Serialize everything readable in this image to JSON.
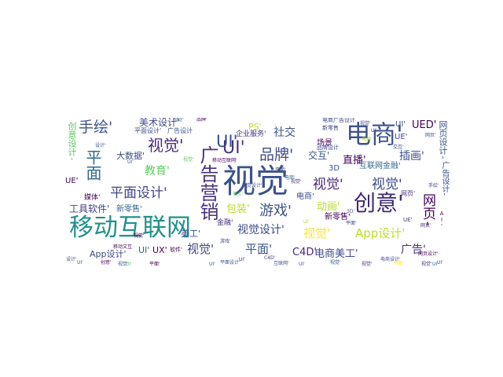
{
  "word_cloud": {
    "colormap": "viridis",
    "words": [
      {
        "text": "视觉",
        "color": "#3b528b"
      },
      {
        "text": "移动互联网",
        "color": "#21918c"
      },
      {
        "text": "电商'",
        "color": "#3b528b"
      },
      {
        "text": "创意'",
        "color": "#3e2a74"
      },
      {
        "text": "广告营销",
        "color": "#46327e"
      },
      {
        "text": "UI'",
        "color": "#3b528b"
      },
      {
        "text": "视觉'",
        "color": "#472d7b"
      },
      {
        "text": "平面",
        "color": "#31688e"
      },
      {
        "text": "品牌'",
        "color": "#3e4a89"
      },
      {
        "text": "平面设计'",
        "color": "#414487"
      },
      {
        "text": "UI'",
        "color": "#46327e"
      },
      {
        "text": "手绘'",
        "color": "#3b528b"
      },
      {
        "text": "游戏'",
        "color": "#3b528b"
      },
      {
        "text": "视觉'",
        "color": "#482878"
      },
      {
        "text": "视觉'",
        "color": "#3e4a89"
      },
      {
        "text": "网页'",
        "color": "#440154"
      },
      {
        "text": "视觉设计'",
        "color": "#3e4a89"
      },
      {
        "text": "视觉'",
        "color": "#fde725"
      },
      {
        "text": "App设计'",
        "color": "#bddf26"
      },
      {
        "text": "视觉'",
        "color": "#414487"
      },
      {
        "text": "平面'",
        "color": "#3b528b"
      },
      {
        "text": "广告'",
        "color": "#46327e"
      },
      {
        "text": "C4D'",
        "color": "#482878"
      },
      {
        "text": "电商美工'",
        "color": "#3e4a89"
      },
      {
        "text": "社交",
        "color": "#3b528b"
      },
      {
        "text": "UED'",
        "color": "#440154"
      },
      {
        "text": "插画'",
        "color": "#3b528b"
      },
      {
        "text": "教育'",
        "color": "#5ec962"
      },
      {
        "text": "包装'",
        "color": "#bddf26"
      },
      {
        "text": "动画'",
        "color": "#b5de2b"
      },
      {
        "text": "直播'",
        "color": "#440154"
      },
      {
        "text": "交互'",
        "color": "#3b528b"
      },
      {
        "text": "美术设计'",
        "color": "#3e4a89"
      },
      {
        "text": "工具软件'",
        "color": "#433e85"
      },
      {
        "text": "大数据'",
        "color": "#3e4a89"
      },
      {
        "text": "新零售'",
        "color": "#31688e"
      },
      {
        "text": "新零售'",
        "color": "#440154"
      },
      {
        "text": "App设计'",
        "color": "#3e4a89"
      },
      {
        "text": "互联网金融'",
        "color": "#31688e"
      },
      {
        "text": "网页设计'",
        "color": "#3b528b"
      },
      {
        "text": "广告设计'",
        "color": "#3b528b"
      },
      {
        "text": "创意设计'",
        "color": "#5ec962"
      },
      {
        "text": "UE'",
        "color": "#440154"
      },
      {
        "text": "UE'",
        "color": "#3e4a89"
      },
      {
        "text": "UI'",
        "color": "#3b528b"
      },
      {
        "text": "电商'",
        "color": "#3e4a89"
      },
      {
        "text": "美工'",
        "color": "#3b528b"
      },
      {
        "text": "PS'",
        "color": "#bddf26"
      },
      {
        "text": "UI'",
        "color": "#31688e"
      },
      {
        "text": "UX'",
        "color": "#440154"
      },
      {
        "text": "3D",
        "color": "#3b528b"
      },
      {
        "text": "场景",
        "color": "#440154"
      },
      {
        "text": "平面设计'",
        "color": "#3e4a89"
      },
      {
        "text": "广告设计",
        "color": "#3b528b"
      },
      {
        "text": "企业服务'",
        "color": "#46327e"
      },
      {
        "text": "品牌设计",
        "color": "#3e4a89"
      },
      {
        "text": "媒体'",
        "color": "#440154"
      },
      {
        "text": "金融'",
        "color": "#482878"
      },
      {
        "text": "网页'",
        "color": "#46327e"
      },
      {
        "text": "电商广告设计",
        "color": "#3e4a89"
      },
      {
        "text": "设计'",
        "color": "#3b528b"
      },
      {
        "text": "UE'",
        "color": "#46327e"
      },
      {
        "text": "移动文互",
        "color": "#440154"
      },
      {
        "text": "新零售",
        "color": "#3e4a89"
      },
      {
        "text": "视觉'",
        "color": "#46327e"
      },
      {
        "text": "视觉'",
        "color": "#5ec962"
      },
      {
        "text": "软件'",
        "color": "#440154"
      },
      {
        "text": "网页'",
        "color": "#3b528b"
      },
      {
        "text": "AI'",
        "color": "#440154"
      },
      {
        "text": "视觉'",
        "color": "#3e4a89"
      },
      {
        "text": "3D'",
        "color": "#3b528b"
      },
      {
        "text": "网页'",
        "color": "#482878"
      },
      {
        "text": "游戏'",
        "color": "#3e4a89"
      },
      {
        "text": "UI'",
        "color": "#3b528b"
      },
      {
        "text": "平面'",
        "color": "#3e4a89"
      },
      {
        "text": "设计'",
        "color": "#3b528b"
      },
      {
        "text": "移动互联网'",
        "color": "#440154"
      },
      {
        "text": "UI'",
        "color": "#46327e"
      },
      {
        "text": "交互'",
        "color": "#3e4a89"
      },
      {
        "text": "电商'",
        "color": "#31688e"
      },
      {
        "text": "品牌'",
        "color": "#440154"
      },
      {
        "text": "视觉'",
        "color": "#3b528b"
      },
      {
        "text": "手绘'",
        "color": "#3e4a89"
      },
      {
        "text": "UI'",
        "color": "#482878"
      },
      {
        "text": "平面设计'",
        "color": "#3b528b"
      },
      {
        "text": "创意'",
        "color": "#440154"
      },
      {
        "text": "UI'",
        "color": "#3e4a89"
      },
      {
        "text": "视觉'",
        "color": "#46327e"
      },
      {
        "text": "互联网'",
        "color": "#3b528b"
      },
      {
        "text": "网页设计'",
        "color": "#440154"
      },
      {
        "text": "电商设计'",
        "color": "#3e4a89"
      },
      {
        "text": "视觉'",
        "color": "#3b528b"
      },
      {
        "text": "C4D'",
        "color": "#46327e"
      },
      {
        "text": "美工'",
        "color": "#5ec962"
      },
      {
        "text": "视觉设计'",
        "color": "#3b528b"
      },
      {
        "text": "UI'",
        "color": "#b5de2b"
      },
      {
        "text": "平面'",
        "color": "#3e4a89"
      },
      {
        "text": "UI'",
        "color": "#3b528b"
      },
      {
        "text": "视觉'",
        "color": "#440154"
      },
      {
        "text": "平面'",
        "color": "#fde725"
      },
      {
        "text": "UI'",
        "color": "#3e4a89"
      },
      {
        "text": "电商'",
        "color": "#b5de2b"
      },
      {
        "text": "UI'",
        "color": "#3b528b"
      },
      {
        "text": "视觉'",
        "color": "#46327e"
      },
      {
        "text": "UI'",
        "color": "#3b528b"
      },
      {
        "text": "平面'",
        "color": "#440154"
      },
      {
        "text": "视觉'",
        "color": "#3b528b"
      },
      {
        "text": "UI'",
        "color": "#5ec962"
      }
    ]
  }
}
